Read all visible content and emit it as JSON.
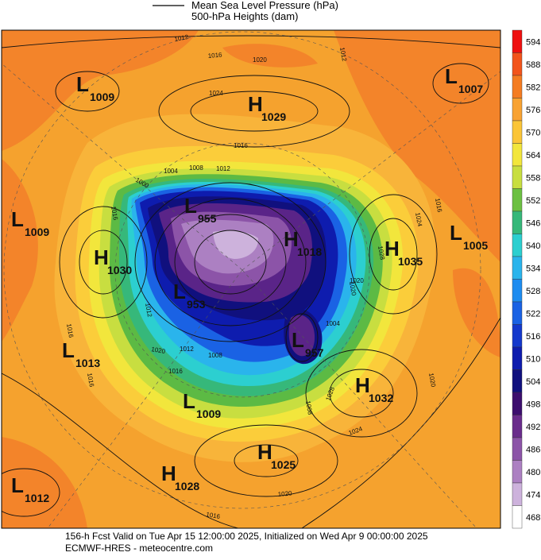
{
  "header": {
    "legend": [
      "Mean Sea Level Pressure (hPa)",
      "500-hPa Heights (dam)"
    ]
  },
  "colorbar": {
    "levels": [
      594,
      588,
      582,
      576,
      570,
      564,
      558,
      552,
      546,
      540,
      534,
      528,
      522,
      516,
      510,
      504,
      498,
      492,
      486,
      480,
      474,
      468
    ],
    "colors": [
      "#ee1010",
      "#f2541c",
      "#f47c22",
      "#f8a232",
      "#fbc537",
      "#f2e63c",
      "#c8de40",
      "#6cc042",
      "#36b87a",
      "#2ccfd0",
      "#2ab4ec",
      "#1e8cf0",
      "#1a62e4",
      "#1438cc",
      "#0e1cae",
      "#10107e",
      "#3c0e6e",
      "#6a2c8c",
      "#8c54a8",
      "#ac80c2",
      "#cdb2dc",
      "#ffffff"
    ]
  },
  "centers": [
    {
      "letter": "L",
      "value": "1009"
    },
    {
      "letter": "H",
      "value": "1029"
    },
    {
      "letter": "L",
      "value": "1007"
    },
    {
      "letter": "L",
      "value": "955"
    },
    {
      "letter": "L",
      "value": "1009"
    },
    {
      "letter": "H",
      "value": "1030"
    },
    {
      "letter": "H",
      "value": "1018"
    },
    {
      "letter": "H",
      "value": "1035"
    },
    {
      "letter": "L",
      "value": "1005"
    },
    {
      "letter": "L",
      "value": "953"
    },
    {
      "letter": "L",
      "value": "957"
    },
    {
      "letter": "L",
      "value": "1013"
    },
    {
      "letter": "H",
      "value": "1032"
    },
    {
      "letter": "L",
      "value": "1009"
    },
    {
      "letter": "H",
      "value": "1025"
    },
    {
      "letter": "H",
      "value": "1028"
    },
    {
      "letter": "L",
      "value": "1012"
    }
  ],
  "contour_labels": [
    "1012",
    "1016",
    "1020",
    "1024",
    "1012",
    "1016",
    "1012",
    "1008",
    "1004",
    "1000",
    "1016",
    "1024",
    "1028",
    "1020",
    "1012",
    "1016",
    "1020",
    "1016",
    "1012",
    "1004",
    "1008",
    "1020",
    "1008",
    "1016",
    "1028",
    "1024",
    "1020",
    "1016",
    "1016",
    "1020"
  ],
  "footer": {
    "line1": "156-h Fcst Valid on Tue Apr 15 12:00:00 2025, Initialized on Wed Apr  9 00:00:00 2025",
    "line2": "ECMWF-HRES - meteocentre.com"
  }
}
